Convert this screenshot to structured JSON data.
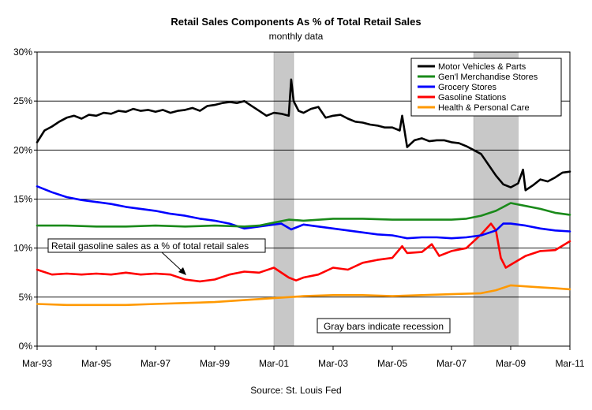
{
  "colors": {
    "plot_background": "#ffffff",
    "gridline": "#000000",
    "recession_fill": "#c8c8c8"
  },
  "chart_data": {
    "type": "line",
    "title": "Retail Sales Components As %  of Total Retail Sales",
    "subtitle": "monthly data",
    "source": "Source: St. Louis Fed",
    "x_tick_labels": [
      "Mar-93",
      "Mar-95",
      "Mar-97",
      "Mar-99",
      "Mar-01",
      "Mar-03",
      "Mar-05",
      "Mar-07",
      "Mar-09",
      "Mar-11"
    ],
    "x_tick_dates": [
      "1993-03",
      "1995-03",
      "1997-03",
      "1999-03",
      "2001-03",
      "2003-03",
      "2005-03",
      "2007-03",
      "2009-03",
      "2011-03"
    ],
    "xlim": [
      "1993-03",
      "2011-03"
    ],
    "y_tick_labels": [
      "0%",
      "5%",
      "10%",
      "15%",
      "20%",
      "25%",
      "30%"
    ],
    "ylim": [
      0,
      30
    ],
    "grid": "horizontal",
    "legend_position": "top-right",
    "recessions": [
      {
        "start": "2001-03",
        "end": "2001-11"
      },
      {
        "start": "2007-12",
        "end": "2009-06"
      }
    ],
    "annotations": {
      "gasoline_callout": "Retail gasoline sales as a % of total retail sales",
      "recession_note": "Gray bars indicate recession"
    },
    "series": [
      {
        "name": "Motor Vehicles & Parts",
        "color": "#000000",
        "points": [
          [
            "1993-03",
            20.8
          ],
          [
            "1993-06",
            22.0
          ],
          [
            "1993-09",
            22.4
          ],
          [
            "1993-12",
            22.9
          ],
          [
            "1994-03",
            23.3
          ],
          [
            "1994-06",
            23.5
          ],
          [
            "1994-09",
            23.2
          ],
          [
            "1994-12",
            23.6
          ],
          [
            "1995-03",
            23.5
          ],
          [
            "1995-06",
            23.8
          ],
          [
            "1995-09",
            23.7
          ],
          [
            "1995-12",
            24.0
          ],
          [
            "1996-03",
            23.9
          ],
          [
            "1996-06",
            24.2
          ],
          [
            "1996-09",
            24.0
          ],
          [
            "1996-12",
            24.1
          ],
          [
            "1997-03",
            23.9
          ],
          [
            "1997-06",
            24.1
          ],
          [
            "1997-09",
            23.8
          ],
          [
            "1997-12",
            24.0
          ],
          [
            "1998-03",
            24.1
          ],
          [
            "1998-06",
            24.3
          ],
          [
            "1998-09",
            24.0
          ],
          [
            "1998-12",
            24.5
          ],
          [
            "1999-03",
            24.6
          ],
          [
            "1999-06",
            24.8
          ],
          [
            "1999-09",
            24.9
          ],
          [
            "1999-12",
            24.8
          ],
          [
            "2000-03",
            25.0
          ],
          [
            "2000-06",
            24.5
          ],
          [
            "2000-09",
            24.0
          ],
          [
            "2000-12",
            23.5
          ],
          [
            "2001-03",
            23.8
          ],
          [
            "2001-06",
            23.7
          ],
          [
            "2001-09",
            23.5
          ],
          [
            "2001-10",
            27.2
          ],
          [
            "2001-11",
            25.0
          ],
          [
            "2002-01",
            24.0
          ],
          [
            "2002-03",
            23.8
          ],
          [
            "2002-06",
            24.2
          ],
          [
            "2002-09",
            24.4
          ],
          [
            "2002-12",
            23.3
          ],
          [
            "2003-03",
            23.5
          ],
          [
            "2003-06",
            23.6
          ],
          [
            "2003-09",
            23.2
          ],
          [
            "2003-12",
            22.9
          ],
          [
            "2004-03",
            22.8
          ],
          [
            "2004-06",
            22.6
          ],
          [
            "2004-09",
            22.5
          ],
          [
            "2004-12",
            22.3
          ],
          [
            "2005-03",
            22.3
          ],
          [
            "2005-06",
            22.0
          ],
          [
            "2005-07",
            23.5
          ],
          [
            "2005-09",
            20.3
          ],
          [
            "2005-12",
            21.0
          ],
          [
            "2006-03",
            21.2
          ],
          [
            "2006-06",
            20.9
          ],
          [
            "2006-09",
            21.0
          ],
          [
            "2006-12",
            21.0
          ],
          [
            "2007-03",
            20.8
          ],
          [
            "2007-06",
            20.7
          ],
          [
            "2007-09",
            20.4
          ],
          [
            "2007-12",
            20.0
          ],
          [
            "2008-03",
            19.6
          ],
          [
            "2008-06",
            18.5
          ],
          [
            "2008-09",
            17.4
          ],
          [
            "2008-12",
            16.5
          ],
          [
            "2009-03",
            16.2
          ],
          [
            "2009-06",
            16.6
          ],
          [
            "2009-08",
            18.0
          ],
          [
            "2009-09",
            15.9
          ],
          [
            "2009-12",
            16.4
          ],
          [
            "2010-03",
            17.0
          ],
          [
            "2010-06",
            16.8
          ],
          [
            "2010-09",
            17.2
          ],
          [
            "2010-12",
            17.7
          ],
          [
            "2011-03",
            17.8
          ]
        ]
      },
      {
        "name": "Gen'l Merchandise Stores",
        "color": "#1a8a1a",
        "points": [
          [
            "1993-03",
            12.3
          ],
          [
            "1994-03",
            12.3
          ],
          [
            "1995-03",
            12.2
          ],
          [
            "1996-03",
            12.2
          ],
          [
            "1997-03",
            12.3
          ],
          [
            "1998-03",
            12.2
          ],
          [
            "1999-03",
            12.3
          ],
          [
            "2000-03",
            12.2
          ],
          [
            "2000-09",
            12.3
          ],
          [
            "2001-03",
            12.6
          ],
          [
            "2001-09",
            12.9
          ],
          [
            "2002-03",
            12.8
          ],
          [
            "2003-03",
            13.0
          ],
          [
            "2004-03",
            13.0
          ],
          [
            "2005-03",
            12.9
          ],
          [
            "2006-03",
            12.9
          ],
          [
            "2007-03",
            12.9
          ],
          [
            "2007-09",
            13.0
          ],
          [
            "2008-03",
            13.3
          ],
          [
            "2008-09",
            13.8
          ],
          [
            "2009-03",
            14.6
          ],
          [
            "2009-09",
            14.3
          ],
          [
            "2010-03",
            14.0
          ],
          [
            "2010-09",
            13.6
          ],
          [
            "2011-03",
            13.4
          ]
        ]
      },
      {
        "name": "Grocery Stores",
        "color": "#0000ff",
        "points": [
          [
            "1993-03",
            16.3
          ],
          [
            "1993-09",
            15.7
          ],
          [
            "1994-03",
            15.2
          ],
          [
            "1994-09",
            14.9
          ],
          [
            "1995-03",
            14.7
          ],
          [
            "1995-09",
            14.5
          ],
          [
            "1996-03",
            14.2
          ],
          [
            "1996-09",
            14.0
          ],
          [
            "1997-03",
            13.8
          ],
          [
            "1997-09",
            13.5
          ],
          [
            "1998-03",
            13.3
          ],
          [
            "1998-09",
            13.0
          ],
          [
            "1999-03",
            12.8
          ],
          [
            "1999-09",
            12.5
          ],
          [
            "2000-03",
            12.0
          ],
          [
            "2000-09",
            12.2
          ],
          [
            "2001-03",
            12.4
          ],
          [
            "2001-06",
            12.5
          ],
          [
            "2001-10",
            11.9
          ],
          [
            "2002-03",
            12.4
          ],
          [
            "2002-09",
            12.2
          ],
          [
            "2003-03",
            12.0
          ],
          [
            "2003-09",
            11.8
          ],
          [
            "2004-03",
            11.6
          ],
          [
            "2004-09",
            11.4
          ],
          [
            "2005-03",
            11.3
          ],
          [
            "2005-09",
            11.0
          ],
          [
            "2006-03",
            11.1
          ],
          [
            "2006-09",
            11.1
          ],
          [
            "2007-03",
            11.0
          ],
          [
            "2007-09",
            11.1
          ],
          [
            "2008-03",
            11.3
          ],
          [
            "2008-09",
            11.8
          ],
          [
            "2008-12",
            12.5
          ],
          [
            "2009-03",
            12.5
          ],
          [
            "2009-09",
            12.3
          ],
          [
            "2010-03",
            12.0
          ],
          [
            "2010-09",
            11.8
          ],
          [
            "2011-03",
            11.7
          ]
        ]
      },
      {
        "name": "Gasoline Stations",
        "color": "#ff0000",
        "points": [
          [
            "1993-03",
            7.8
          ],
          [
            "1993-09",
            7.3
          ],
          [
            "1994-03",
            7.4
          ],
          [
            "1994-09",
            7.3
          ],
          [
            "1995-03",
            7.4
          ],
          [
            "1995-09",
            7.3
          ],
          [
            "1996-03",
            7.5
          ],
          [
            "1996-09",
            7.3
          ],
          [
            "1997-03",
            7.4
          ],
          [
            "1997-09",
            7.3
          ],
          [
            "1998-03",
            6.8
          ],
          [
            "1998-09",
            6.6
          ],
          [
            "1999-03",
            6.8
          ],
          [
            "1999-09",
            7.3
          ],
          [
            "2000-03",
            7.6
          ],
          [
            "2000-09",
            7.5
          ],
          [
            "2001-03",
            8.0
          ],
          [
            "2001-09",
            7.0
          ],
          [
            "2001-12",
            6.7
          ],
          [
            "2002-03",
            7.0
          ],
          [
            "2002-09",
            7.3
          ],
          [
            "2003-03",
            8.0
          ],
          [
            "2003-09",
            7.8
          ],
          [
            "2004-03",
            8.5
          ],
          [
            "2004-09",
            8.8
          ],
          [
            "2005-03",
            9.0
          ],
          [
            "2005-07",
            10.2
          ],
          [
            "2005-09",
            9.5
          ],
          [
            "2006-03",
            9.6
          ],
          [
            "2006-07",
            10.4
          ],
          [
            "2006-10",
            9.2
          ],
          [
            "2007-03",
            9.7
          ],
          [
            "2007-09",
            10.0
          ],
          [
            "2008-03",
            11.4
          ],
          [
            "2008-07",
            12.5
          ],
          [
            "2008-09",
            11.8
          ],
          [
            "2008-11",
            9.0
          ],
          [
            "2009-01",
            8.0
          ],
          [
            "2009-03",
            8.3
          ],
          [
            "2009-09",
            9.2
          ],
          [
            "2010-03",
            9.7
          ],
          [
            "2010-09",
            9.8
          ],
          [
            "2011-03",
            10.7
          ]
        ]
      },
      {
        "name": "Health & Personal Care",
        "color": "#ff9900",
        "points": [
          [
            "1993-03",
            4.3
          ],
          [
            "1994-03",
            4.2
          ],
          [
            "1995-03",
            4.2
          ],
          [
            "1996-03",
            4.2
          ],
          [
            "1997-03",
            4.3
          ],
          [
            "1998-03",
            4.4
          ],
          [
            "1999-03",
            4.5
          ],
          [
            "2000-03",
            4.7
          ],
          [
            "2001-03",
            4.9
          ],
          [
            "2002-03",
            5.1
          ],
          [
            "2003-03",
            5.2
          ],
          [
            "2004-03",
            5.2
          ],
          [
            "2005-03",
            5.1
          ],
          [
            "2006-03",
            5.2
          ],
          [
            "2007-03",
            5.3
          ],
          [
            "2008-03",
            5.4
          ],
          [
            "2008-09",
            5.7
          ],
          [
            "2009-03",
            6.2
          ],
          [
            "2009-09",
            6.1
          ],
          [
            "2010-03",
            6.0
          ],
          [
            "2010-09",
            5.9
          ],
          [
            "2011-03",
            5.8
          ]
        ]
      }
    ]
  }
}
